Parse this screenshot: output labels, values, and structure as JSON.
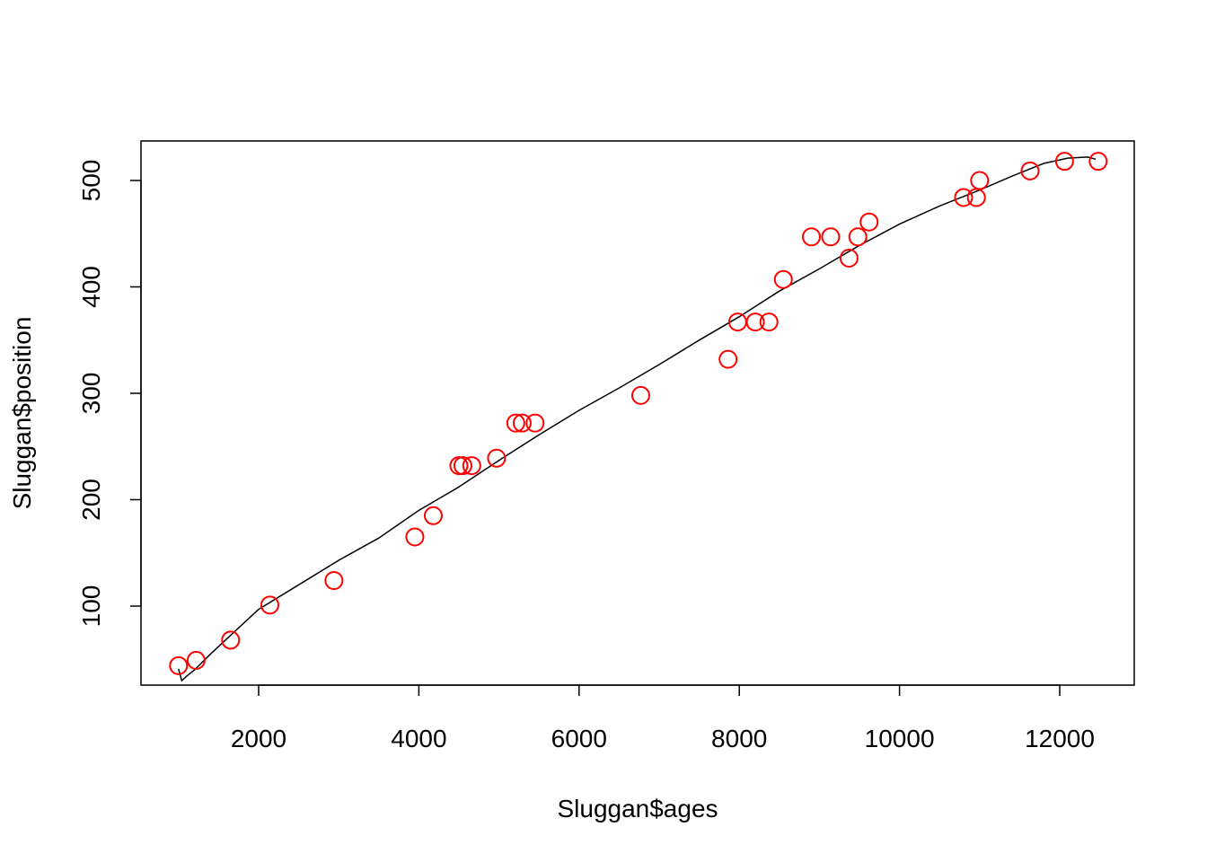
{
  "chart_data": {
    "type": "scatter",
    "xlabel": "Sluggan$ages",
    "ylabel": "Sluggan$position",
    "xlim": [
      1000,
      12500
    ],
    "ylim": [
      30,
      525
    ],
    "x_ticks": [
      2000,
      4000,
      6000,
      8000,
      10000,
      12000
    ],
    "y_ticks": [
      100,
      200,
      300,
      400,
      500
    ],
    "grid": false,
    "legend": "none",
    "colors": {
      "points": "#ff0000",
      "fit_line": "#000000",
      "axes": "#000000"
    },
    "series": [
      {
        "kind": "points",
        "marker": "open-circle",
        "x": [
          1000,
          1220,
          1650,
          2140,
          2940,
          3950,
          4180,
          4500,
          4550,
          4660,
          4970,
          5210,
          5290,
          5450,
          6770,
          7860,
          7980,
          8200,
          8370,
          8550,
          8900,
          9140,
          9370,
          9480,
          9620,
          10800,
          10960,
          11000,
          11630,
          12060,
          12480
        ],
        "y": [
          44,
          49,
          68,
          101,
          124,
          165,
          185,
          232,
          232,
          232,
          239,
          272,
          272,
          272,
          298,
          332,
          367,
          367,
          367,
          407,
          447,
          447,
          427,
          447,
          461,
          484,
          484,
          500,
          509,
          518,
          518
        ]
      },
      {
        "kind": "line",
        "x": [
          1000,
          1040,
          1100,
          1200,
          1400,
          1700,
          2000,
          2500,
          3000,
          3500,
          4000,
          4500,
          5000,
          5500,
          6000,
          6500,
          7000,
          7500,
          8000,
          8500,
          9000,
          9500,
          10000,
          10500,
          11000,
          11400,
          11800,
          12100,
          12350,
          12450
        ],
        "y": [
          41,
          30,
          34,
          40,
          55,
          76,
          97,
          120,
          143,
          164,
          190,
          212,
          237,
          261,
          284,
          305,
          327,
          350,
          372,
          396,
          417,
          439,
          459,
          476,
          491,
          504,
          516,
          521,
          522,
          520
        ]
      }
    ]
  }
}
